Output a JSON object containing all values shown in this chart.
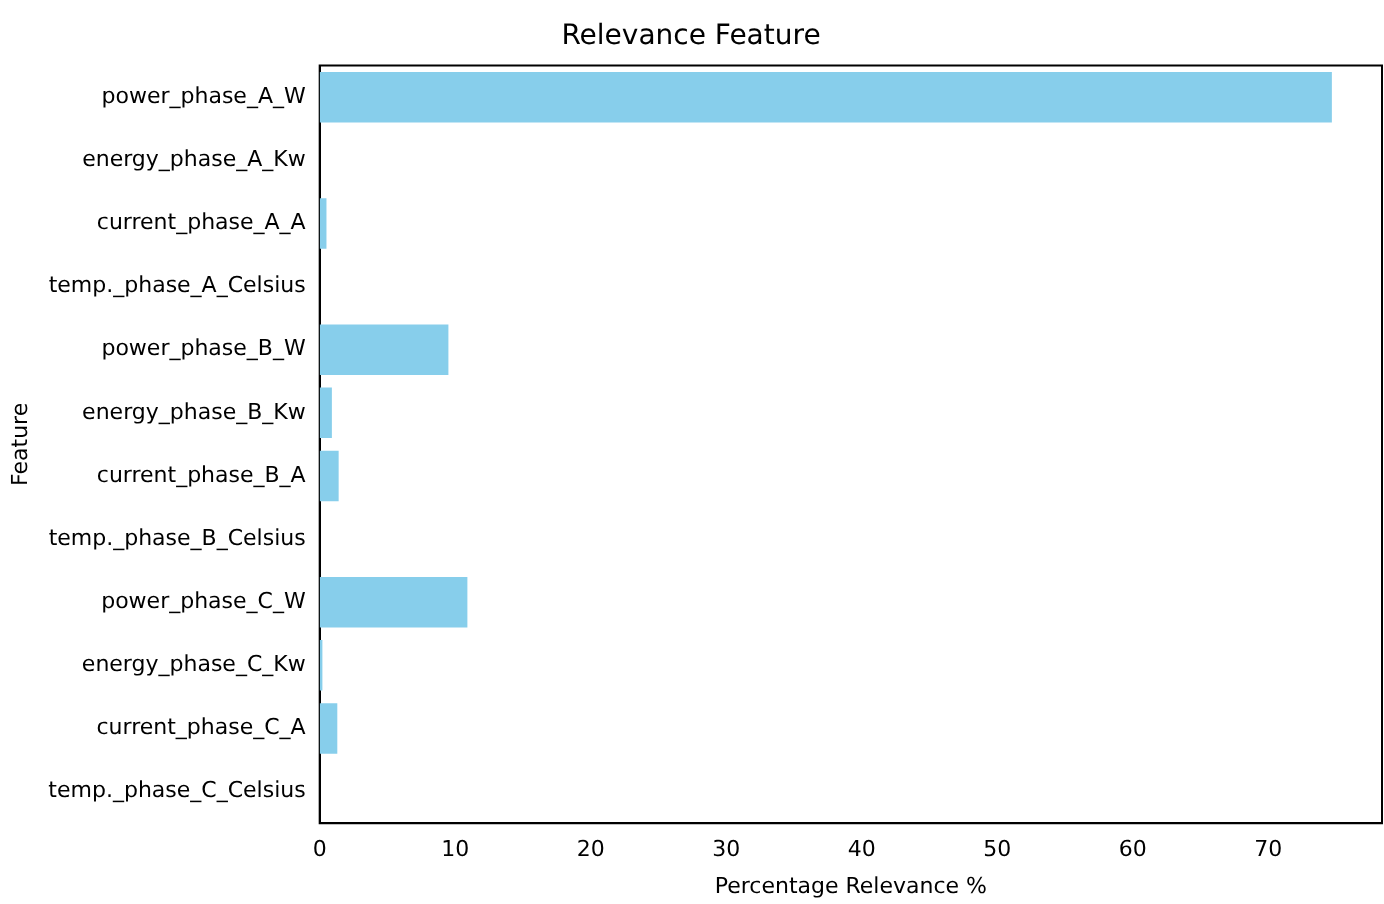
{
  "chart_data": {
    "type": "bar",
    "orientation": "horizontal",
    "title": "Relevance Feature",
    "xlabel": "Percentage Relevance %",
    "ylabel": "Feature",
    "categories": [
      "power_phase_A_W",
      "energy_phase_A_Kw",
      "current_phase_A_A",
      "temp._phase_A_Celsius",
      "power_phase_B_W",
      "energy_phase_B_Kw",
      "current_phase_B_A",
      "temp._phase_B_Celsius",
      "power_phase_C_W",
      "energy_phase_C_Kw",
      "current_phase_C_A",
      "temp._phase_C_Celsius"
    ],
    "values": [
      74.7,
      0,
      0.5,
      0,
      9.5,
      0.9,
      1.4,
      0,
      10.9,
      0.2,
      1.3,
      0
    ],
    "color": "#87ceeb",
    "xlim": [
      0,
      78.4
    ],
    "xticks": [
      0,
      10,
      20,
      30,
      40,
      50,
      60,
      70
    ],
    "grid": false,
    "legend": false
  }
}
